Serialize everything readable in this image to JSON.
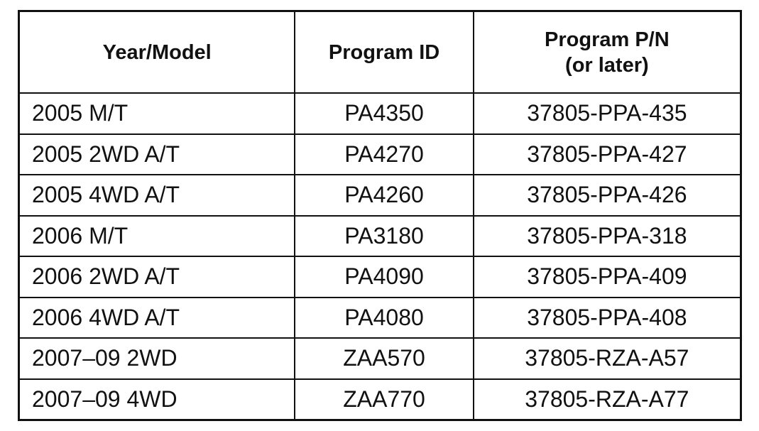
{
  "table": {
    "headers": [
      "Year/Model",
      "Program ID",
      "Program P/N",
      "(or later)"
    ],
    "rows": [
      [
        "2005 M/T",
        "PA4350",
        "37805-PPA-435"
      ],
      [
        "2005 2WD A/T",
        "PA4270",
        "37805-PPA-427"
      ],
      [
        "2005 4WD A/T",
        "PA4260",
        "37805-PPA-426"
      ],
      [
        "2006 M/T",
        "PA3180",
        "37805-PPA-318"
      ],
      [
        "2006 2WD A/T",
        "PA4090",
        "37805-PPA-409"
      ],
      [
        "2006 4WD A/T",
        "PA4080",
        "37805-PPA-408"
      ],
      [
        "2007–09 2WD",
        "ZAA570",
        "37805-RZA-A57"
      ],
      [
        "2007–09 4WD",
        "ZAA770",
        "37805-RZA-A77"
      ]
    ]
  }
}
